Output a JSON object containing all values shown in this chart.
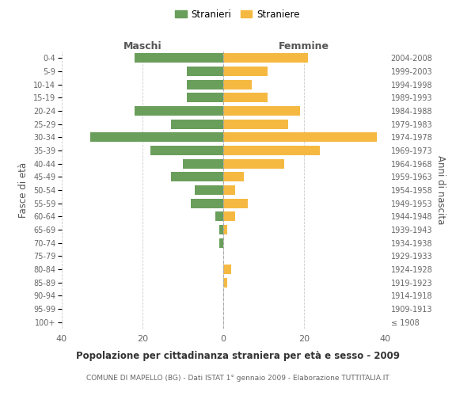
{
  "age_groups": [
    "100+",
    "95-99",
    "90-94",
    "85-89",
    "80-84",
    "75-79",
    "70-74",
    "65-69",
    "60-64",
    "55-59",
    "50-54",
    "45-49",
    "40-44",
    "35-39",
    "30-34",
    "25-29",
    "20-24",
    "15-19",
    "10-14",
    "5-9",
    "0-4"
  ],
  "birth_years": [
    "≤ 1908",
    "1909-1913",
    "1914-1918",
    "1919-1923",
    "1924-1928",
    "1929-1933",
    "1934-1938",
    "1939-1943",
    "1944-1948",
    "1949-1953",
    "1954-1958",
    "1959-1963",
    "1964-1968",
    "1969-1973",
    "1974-1978",
    "1979-1983",
    "1984-1988",
    "1989-1993",
    "1994-1998",
    "1999-2003",
    "2004-2008"
  ],
  "maschi": [
    0,
    0,
    0,
    0,
    0,
    0,
    1,
    1,
    2,
    8,
    7,
    13,
    10,
    18,
    33,
    13,
    22,
    9,
    9,
    9,
    22
  ],
  "femmine": [
    0,
    0,
    0,
    1,
    2,
    0,
    0,
    1,
    3,
    6,
    3,
    5,
    15,
    24,
    38,
    16,
    19,
    11,
    7,
    11,
    21
  ],
  "maschi_color": "#6a9e5b",
  "femmine_color": "#f5b942",
  "background_color": "#ffffff",
  "grid_color": "#cccccc",
  "title": "Popolazione per cittadinanza straniera per età e sesso - 2009",
  "subtitle": "COMUNE DI MAPELLO (BG) - Dati ISTAT 1° gennaio 2009 - Elaborazione TUTTITALIA.IT",
  "ylabel_left": "Fasce di età",
  "ylabel_right": "Anni di nascita",
  "xlabel_maschi": "Maschi",
  "xlabel_femmine": "Femmine",
  "legend_stranieri": "Stranieri",
  "legend_straniere": "Straniere",
  "xlim": 40
}
